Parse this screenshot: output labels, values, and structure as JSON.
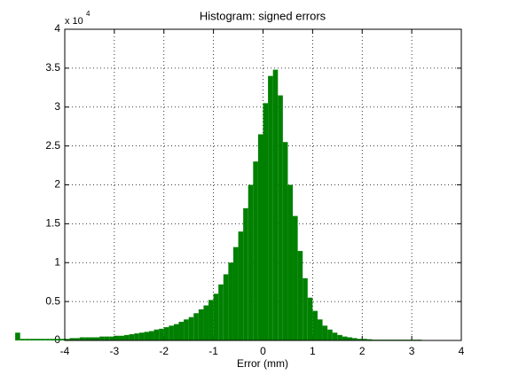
{
  "chart_data": {
    "type": "histogram",
    "title": "Histogram: signed errors",
    "x_label": "Error (mm)",
    "y_multiplier": {
      "base": "x 10",
      "exponent": "4"
    },
    "color": "#008000",
    "bins": [
      -5,
      -4.9,
      -4.8,
      -4.7,
      -4.6,
      -4.5,
      -4.4,
      -4.3,
      -4.2,
      -4.1,
      -4,
      -3.9,
      -3.8,
      -3.7,
      -3.6,
      -3.5,
      -3.4,
      -3.3,
      -3.2,
      -3.1,
      -3,
      -2.9,
      -2.8,
      -2.7,
      -2.6,
      -2.5,
      -2.4,
      -2.3,
      -2.2,
      -2.1,
      -2,
      -1.9,
      -1.8,
      -1.7,
      -1.6,
      -1.5,
      -1.4,
      -1.3,
      -1.2,
      -1.1,
      -1,
      -0.9,
      -0.8,
      -0.7,
      -0.6,
      -0.5,
      -0.4,
      -0.3,
      -0.2,
      -0.1,
      0,
      0.1,
      0.2,
      0.3,
      0.4,
      0.5,
      0.6,
      0.7,
      0.8,
      0.9,
      1,
      1.1,
      1.2,
      1.3,
      1.4,
      1.5,
      1.6,
      1.7,
      1.8,
      1.9,
      2,
      2.1,
      2.2,
      2.3,
      2.4,
      2.5,
      2.6,
      2.7,
      2.8,
      2.9,
      3,
      3.1,
      3.2,
      3.3
    ],
    "values": [
      0.1,
      0.02,
      0.02,
      0.02,
      0.02,
      0.02,
      0.02,
      0.02,
      0.02,
      0.02,
      0.02,
      0.03,
      0.03,
      0.04,
      0.04,
      0.04,
      0.04,
      0.05,
      0.05,
      0.05,
      0.06,
      0.06,
      0.07,
      0.08,
      0.09,
      0.1,
      0.11,
      0.12,
      0.14,
      0.15,
      0.17,
      0.19,
      0.21,
      0.24,
      0.27,
      0.3,
      0.35,
      0.4,
      0.45,
      0.52,
      0.6,
      0.72,
      0.85,
      1.0,
      1.2,
      1.4,
      1.7,
      2.0,
      2.3,
      2.65,
      3.05,
      3.4,
      3.48,
      3.15,
      2.55,
      2.0,
      1.6,
      1.15,
      0.8,
      0.55,
      0.38,
      0.27,
      0.19,
      0.14,
      0.1,
      0.07,
      0.05,
      0.04,
      0.03,
      0.02,
      0.02,
      0.015,
      0.01,
      0.01,
      0.01,
      0.01,
      0.01,
      0.01,
      0.01,
      0.01,
      0.01,
      0.01,
      0.005
    ],
    "xlim": [
      -4,
      4
    ],
    "xticks": [
      -4,
      -3,
      -2,
      -1,
      0,
      1,
      2,
      3,
      4
    ],
    "ylim": [
      0,
      4
    ],
    "yticks": [
      0,
      0.5,
      1,
      1.5,
      2,
      2.5,
      3,
      3.5,
      4
    ],
    "grid": true
  }
}
